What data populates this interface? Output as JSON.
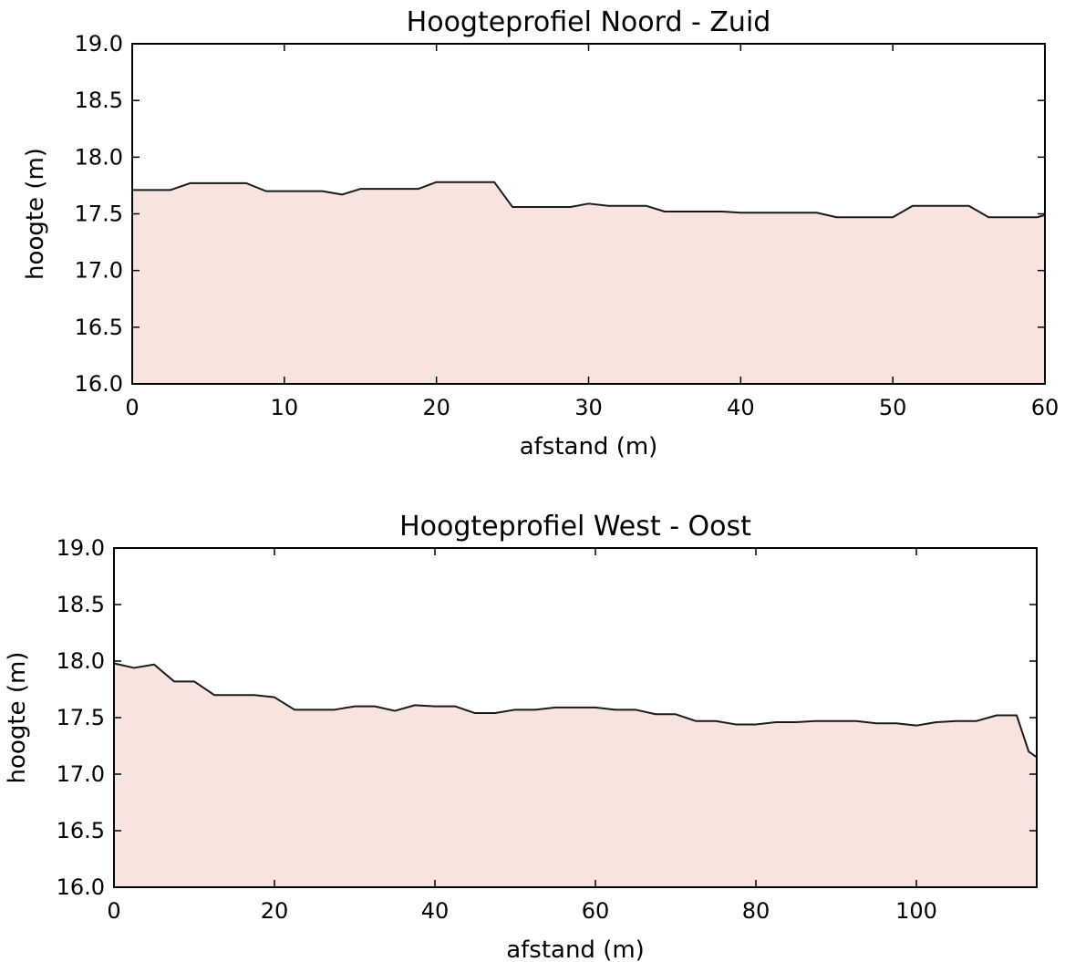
{
  "chart_data": [
    {
      "type": "area",
      "title": "Hoogteprofiel Noord - Zuid",
      "xlabel": "afstand (m)",
      "ylabel": "hoogte (m)",
      "xlim": [
        0,
        60
      ],
      "ylim": [
        16.0,
        19.0
      ],
      "xticks": [
        "0",
        "10",
        "20",
        "30",
        "40",
        "50",
        "60"
      ],
      "yticks": [
        "16.0",
        "16.5",
        "17.0",
        "17.5",
        "18.0",
        "18.5",
        "19.0"
      ],
      "grid": false,
      "fill_color": "#f7e4de",
      "line_color": "#1a1a1a",
      "x": [
        0,
        2.5,
        3.8,
        7.5,
        8.8,
        12.5,
        13.8,
        15.0,
        18.8,
        20.0,
        23.8,
        25.0,
        28.8,
        30.0,
        31.3,
        33.8,
        35.0,
        38.8,
        40.0,
        45.0,
        46.3,
        50.0,
        51.3,
        55.0,
        56.3,
        59.5,
        60.0
      ],
      "y": [
        17.71,
        17.71,
        17.77,
        17.77,
        17.7,
        17.7,
        17.67,
        17.72,
        17.72,
        17.78,
        17.78,
        17.56,
        17.56,
        17.59,
        17.57,
        17.57,
        17.52,
        17.52,
        17.51,
        17.51,
        17.47,
        17.47,
        17.57,
        17.57,
        17.47,
        17.47,
        17.49
      ]
    },
    {
      "type": "area",
      "title": "Hoogteprofiel West - Oost",
      "xlabel": "afstand (m)",
      "ylabel": "hoogte (m)",
      "xlim": [
        0,
        115
      ],
      "ylim": [
        16.0,
        19.0
      ],
      "xticks": [
        "0",
        "20",
        "40",
        "60",
        "80",
        "100"
      ],
      "yticks": [
        "16.0",
        "16.5",
        "17.0",
        "17.5",
        "18.0",
        "18.5",
        "19.0"
      ],
      "grid": false,
      "fill_color": "#f7e4de",
      "line_color": "#1a1a1a",
      "x": [
        0,
        2.5,
        5.0,
        7.5,
        10.0,
        12.5,
        15.0,
        17.5,
        20.0,
        22.5,
        25.0,
        27.5,
        30.0,
        32.5,
        35.0,
        37.5,
        40.0,
        42.5,
        45.0,
        47.5,
        50.0,
        52.5,
        55.0,
        57.5,
        60.0,
        62.5,
        65.0,
        67.5,
        70.0,
        72.5,
        75.0,
        77.5,
        80.0,
        82.5,
        85.0,
        87.5,
        90.0,
        92.5,
        95.0,
        97.5,
        100.0,
        102.5,
        105.0,
        107.5,
        110.0,
        112.5,
        114.0,
        115.0
      ],
      "y": [
        17.98,
        17.94,
        17.97,
        17.82,
        17.82,
        17.7,
        17.7,
        17.7,
        17.68,
        17.57,
        17.57,
        17.57,
        17.6,
        17.6,
        17.56,
        17.61,
        17.6,
        17.6,
        17.54,
        17.54,
        17.57,
        17.57,
        17.59,
        17.59,
        17.59,
        17.57,
        17.57,
        17.53,
        17.53,
        17.47,
        17.47,
        17.44,
        17.44,
        17.46,
        17.46,
        17.47,
        17.47,
        17.47,
        17.45,
        17.45,
        17.43,
        17.46,
        17.47,
        17.47,
        17.52,
        17.52,
        17.2,
        17.15
      ]
    }
  ]
}
